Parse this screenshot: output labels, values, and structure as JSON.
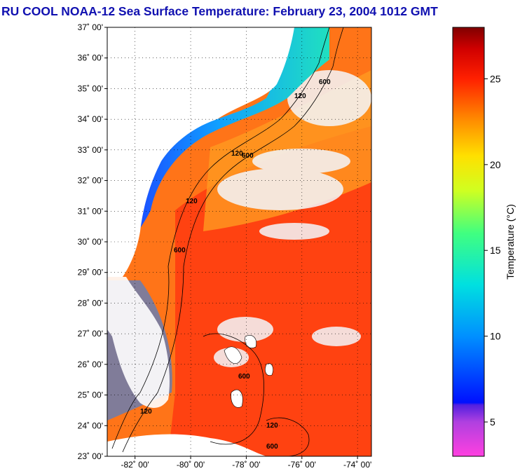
{
  "title": "RU COOL  NOAA-12  Sea Surface Temperature:  February 23, 2004 1012 GMT",
  "map": {
    "lat_labels": [
      "37˚ 00'",
      "36˚ 00'",
      "35˚ 00'",
      "34˚ 00'",
      "33˚ 00'",
      "32˚ 00'",
      "31˚ 00'",
      "30˚ 00'",
      "29˚ 00'",
      "28˚ 00'",
      "27˚ 00'",
      "26˚ 00'",
      "25˚ 00'",
      "24˚ 00'",
      "23˚ 00'"
    ],
    "lon_labels": [
      "-82˚ 00'",
      "-80˚ 00'",
      "-78˚ 00'",
      "-76˚ 00'",
      "-74˚ 00'"
    ],
    "lat_range": [
      23,
      37
    ],
    "lon_range": [
      -83,
      -73.5
    ],
    "contour_labels": [
      "120",
      "600"
    ],
    "colors": {
      "ocean_warm": "#ff3a10",
      "ocean_mid": "#ff8c1a",
      "shelf_cool": "#1aa0ff",
      "shelf_cold": "#1a40ff",
      "land": "#ffffff",
      "cloud": "#f4f7fb"
    }
  },
  "colorbar": {
    "label": "Temperature (°C)",
    "ticks": [
      "25",
      "20",
      "15",
      "10",
      "5"
    ],
    "tick_values": [
      25,
      20,
      15,
      10,
      5
    ],
    "range": [
      3,
      28
    ]
  }
}
